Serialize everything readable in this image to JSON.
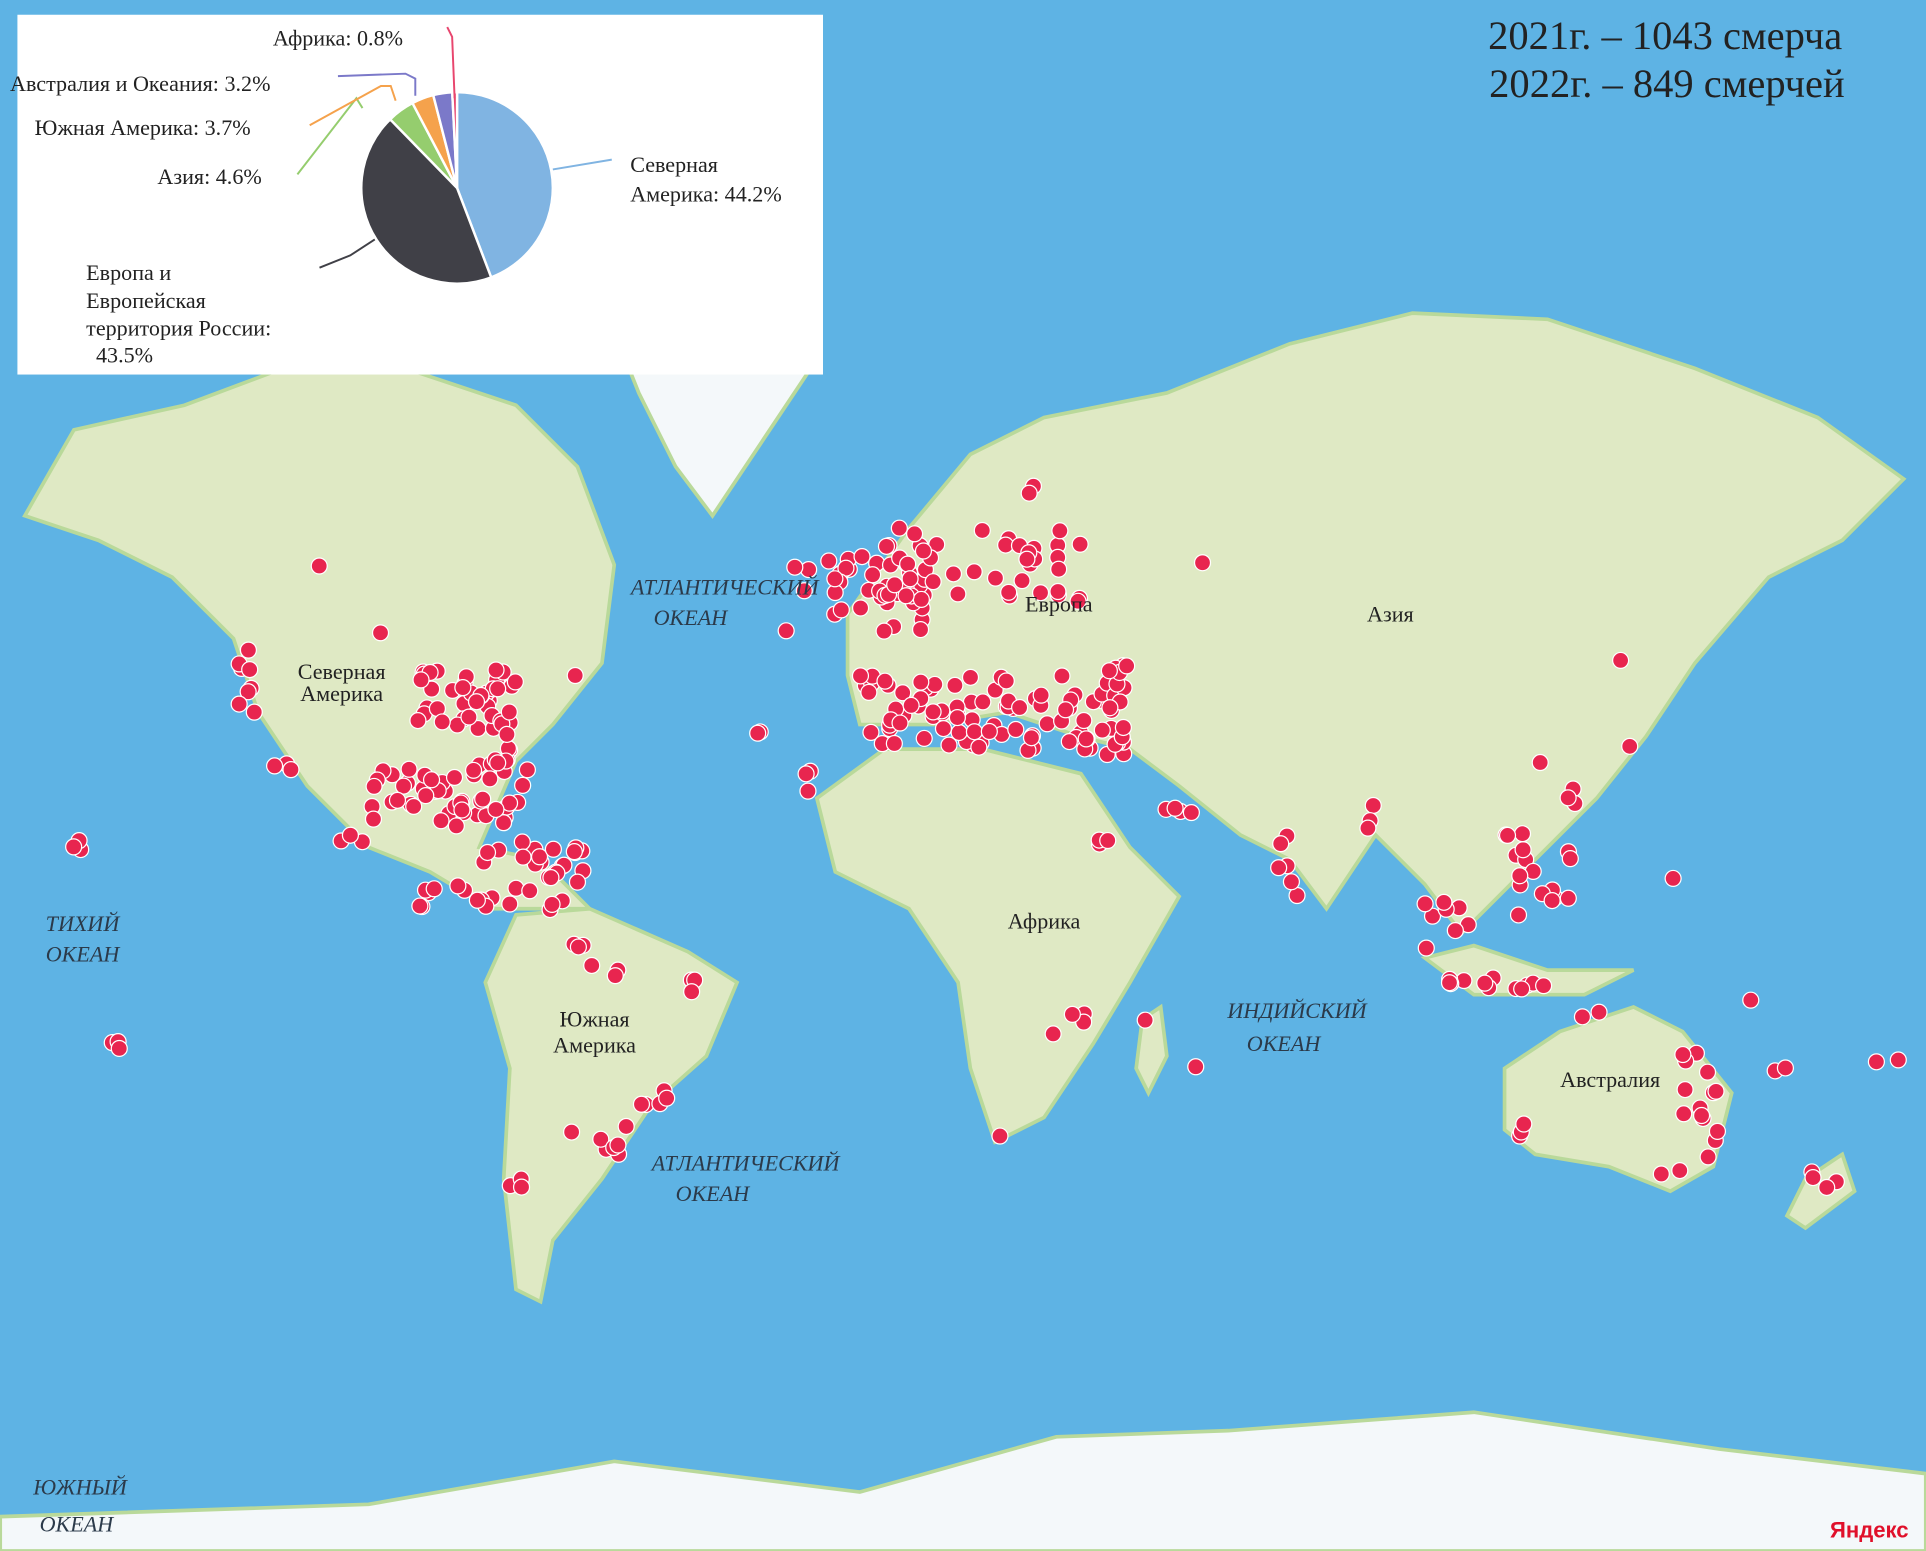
{
  "header": {
    "line1": "2021г. – 1043 смерча",
    "line2": "2022г. – 849 смерчей"
  },
  "chart_data": {
    "type": "pie",
    "slices": [
      {
        "label": "Северная Америка",
        "value": 44.2,
        "text": "Северная Америка: 44.2%",
        "color": "#80b4e2"
      },
      {
        "label": "Европа и Европейская территория России",
        "value": 43.5,
        "text": "Европа и Европейская территория России: 43.5%",
        "color": "#404047"
      },
      {
        "label": "Азия",
        "value": 4.6,
        "text": "Азия: 4.6%",
        "color": "#95cd6e"
      },
      {
        "label": "Южная Америка",
        "value": 3.7,
        "text": "Южная Америка: 3.7%",
        "color": "#f5a24c"
      },
      {
        "label": "Австралия и Океания",
        "value": 3.2,
        "text": "Австралия и Океания: 3.2%",
        "color": "#7b79c9"
      },
      {
        "label": "Африка",
        "value": 0.8,
        "text": "Африка: 0.8%",
        "color": "#e8466e"
      }
    ],
    "pie_labels": {
      "na": [
        "Северная",
        "Америка: 44.2%"
      ],
      "eu": [
        "Европа и",
        "Европейская",
        "территория России:",
        "43.5%"
      ],
      "asia": "Азия: 4.6%",
      "sa": "Южная Америка: 3.7%",
      "au": "Австралия и Океания: 3.2%",
      "af": "Африка: 0.8%"
    }
  },
  "map": {
    "marker_color": "#e8254f",
    "oceans": {
      "atl_n": [
        "АТЛАНТИЧЕСКИЙ",
        "ОКЕАН"
      ],
      "atl_s": [
        "АТЛАНТИЧЕСКИЙ",
        "ОКЕАН"
      ],
      "pac": [
        "ТИХИЙ",
        "ОКЕАН"
      ],
      "ind": [
        "ИНДИЙСКИЙ",
        "ОКЕАН"
      ],
      "south": [
        "ЮЖНЫЙ",
        "ОКЕАН"
      ]
    },
    "continents": {
      "na": [
        "Северная",
        "Америка"
      ],
      "sa": [
        "Южная",
        "Америка"
      ],
      "eu": "Европа",
      "asia": "Азия",
      "af": "Африка",
      "au": "Австралия"
    },
    "logo": "Яндекс"
  }
}
